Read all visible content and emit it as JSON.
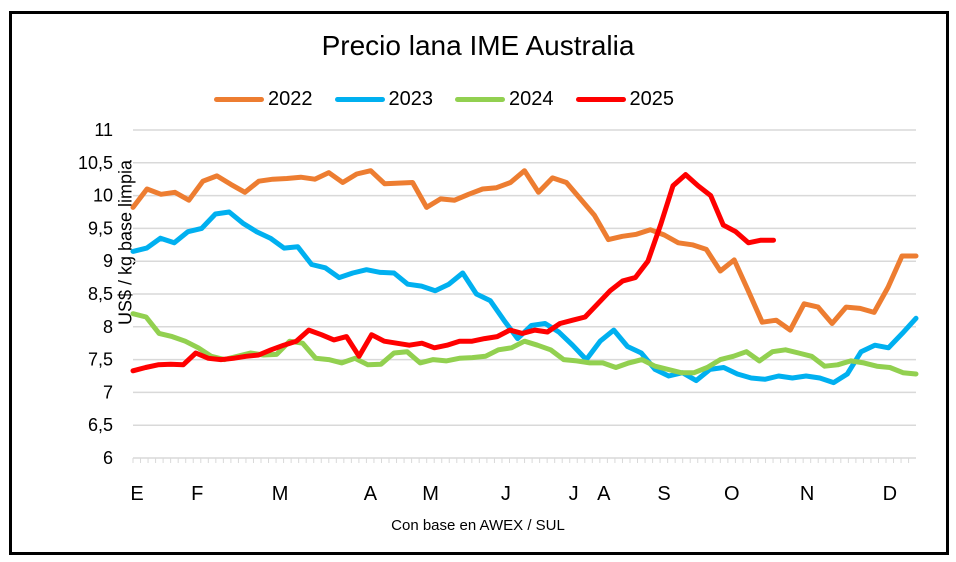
{
  "chart_data": {
    "type": "line",
    "title": "Precio lana IME Australia",
    "xlabel": "Con base en AWEX / SUL",
    "ylabel": "US$ / kg base limpia",
    "ylim": [
      6,
      11
    ],
    "yticks": [
      "6",
      "6,5",
      "7",
      "7,5",
      "8",
      "8,5",
      "9",
      "9,5",
      "10",
      "10,5",
      "11"
    ],
    "ytick_values": [
      6,
      6.5,
      7,
      7.5,
      8,
      8.5,
      9,
      9.5,
      10,
      10.5,
      11
    ],
    "xlim": [
      0,
      52
    ],
    "month_labels": [
      {
        "label": "E",
        "week": 0
      },
      {
        "label": "F",
        "week": 4
      },
      {
        "label": "M",
        "week": 9.5
      },
      {
        "label": "A",
        "week": 15.5
      },
      {
        "label": "M",
        "week": 19.5
      },
      {
        "label": "J",
        "week": 24.5
      },
      {
        "label": "J",
        "week": 29
      },
      {
        "label": "A",
        "week": 31
      },
      {
        "label": "S",
        "week": 35
      },
      {
        "label": "O",
        "week": 39.5
      },
      {
        "label": "N",
        "week": 44.5
      },
      {
        "label": "D",
        "week": 50
      }
    ],
    "grid": true,
    "legend_position": "top",
    "series": [
      {
        "name": "2022",
        "color": "#ED7D31",
        "values": [
          9.82,
          10.1,
          10.02,
          10.05,
          9.93,
          10.22,
          10.3,
          10.17,
          10.05,
          10.22,
          10.25,
          10.26,
          10.28,
          10.25,
          10.35,
          10.2,
          10.33,
          10.38,
          10.18,
          10.19,
          10.2,
          9.82,
          9.95,
          9.93,
          10.02,
          10.1,
          10.12,
          10.2,
          10.38,
          10.05,
          10.27,
          10.2,
          9.95,
          9.7,
          9.33,
          9.38,
          9.41,
          9.48,
          9.4,
          9.28,
          9.25,
          9.18,
          8.85,
          9.02,
          8.55,
          8.07,
          8.1,
          7.95,
          8.35,
          8.3,
          8.05,
          8.3,
          8.28,
          8.22,
          8.6,
          9.08,
          9.08
        ]
      },
      {
        "name": "2023",
        "color": "#00B0F0",
        "values": [
          9.15,
          9.2,
          9.35,
          9.28,
          9.45,
          9.5,
          9.72,
          9.75,
          9.58,
          9.45,
          9.35,
          9.2,
          9.22,
          8.95,
          8.9,
          8.75,
          8.82,
          8.87,
          8.83,
          8.82,
          8.65,
          8.62,
          8.55,
          8.65,
          8.82,
          8.5,
          8.4,
          8.1,
          7.82,
          8.02,
          8.05,
          7.92,
          7.72,
          7.5,
          7.78,
          7.95,
          7.7,
          7.6,
          7.35,
          7.25,
          7.3,
          7.18,
          7.35,
          7.38,
          7.28,
          7.22,
          7.2,
          7.25,
          7.22,
          7.25,
          7.22,
          7.15,
          7.28,
          7.62,
          7.72,
          7.68,
          7.9,
          8.13
        ]
      },
      {
        "name": "2024",
        "color": "#92D050",
        "values": [
          8.2,
          8.15,
          7.9,
          7.85,
          7.78,
          7.68,
          7.55,
          7.5,
          7.55,
          7.6,
          7.57,
          7.58,
          7.78,
          7.75,
          7.52,
          7.5,
          7.45,
          7.52,
          7.42,
          7.43,
          7.6,
          7.62,
          7.45,
          7.5,
          7.48,
          7.52,
          7.53,
          7.55,
          7.65,
          7.68,
          7.78,
          7.72,
          7.65,
          7.5,
          7.48,
          7.45,
          7.45,
          7.38,
          7.45,
          7.5,
          7.4,
          7.35,
          7.3,
          7.3,
          7.38,
          7.5,
          7.55,
          7.62,
          7.48,
          7.62,
          7.65,
          7.6,
          7.55,
          7.4,
          7.42,
          7.48,
          7.45,
          7.4,
          7.38,
          7.3,
          7.28
        ]
      },
      {
        "name": "2025",
        "color": "#FF0000",
        "values": [
          7.33,
          7.38,
          7.42,
          7.43,
          7.42,
          7.6,
          7.52,
          7.5,
          7.52,
          7.55,
          7.57,
          7.65,
          7.72,
          7.78,
          7.95,
          7.88,
          7.8,
          7.85,
          7.55,
          7.88,
          7.78,
          7.75,
          7.72,
          7.75,
          7.68,
          7.72,
          7.78,
          7.78,
          7.82,
          7.85,
          7.95,
          7.9,
          7.95,
          7.92,
          8.05,
          8.1,
          8.15,
          8.35,
          8.55,
          8.7,
          8.75,
          9.0,
          9.55,
          10.15,
          10.32,
          10.15,
          10.0,
          9.55,
          9.45,
          9.28,
          9.32,
          9.32
        ]
      }
    ]
  }
}
